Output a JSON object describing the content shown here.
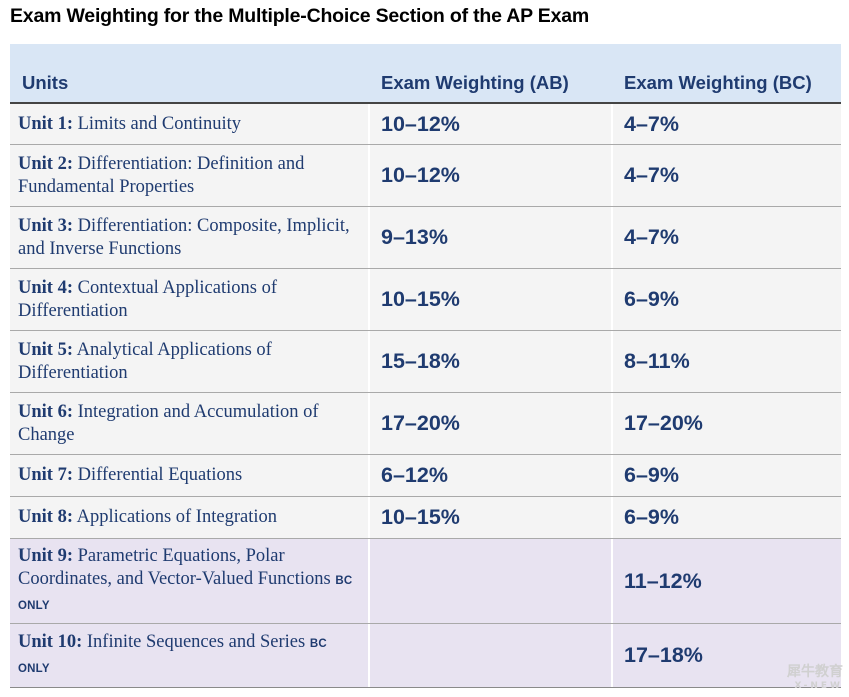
{
  "title": "Exam Weighting for the Multiple-Choice Section of the AP Exam",
  "table": {
    "headers": {
      "units": "Units",
      "ab": "Exam Weighting (AB)",
      "bc": "Exam Weighting (BC)"
    },
    "rows": [
      {
        "unit": "Unit 1:",
        "name": "Limits and Continuity",
        "ab": "10–12%",
        "bc": "4–7%",
        "bc_only": ""
      },
      {
        "unit": "Unit 2:",
        "name": "Differentiation: Definition and Fundamental Properties",
        "ab": "10–12%",
        "bc": "4–7%",
        "bc_only": ""
      },
      {
        "unit": "Unit 3:",
        "name": "Differentiation: Composite, Implicit, and Inverse Functions",
        "ab": "9–13%",
        "bc": "4–7%",
        "bc_only": ""
      },
      {
        "unit": "Unit 4:",
        "name": "Contextual Applications of Differentiation",
        "ab": "10–15%",
        "bc": "6–9%",
        "bc_only": ""
      },
      {
        "unit": "Unit 5:",
        "name": "Analytical Applications of Differentiation",
        "ab": "15–18%",
        "bc": "8–11%",
        "bc_only": ""
      },
      {
        "unit": "Unit 6:",
        "name": "Integration and Accumulation of Change",
        "ab": "17–20%",
        "bc": "17–20%",
        "bc_only": ""
      },
      {
        "unit": "Unit 7:",
        "name": "Differential Equations",
        "ab": "6–12%",
        "bc": "6–9%",
        "bc_only": ""
      },
      {
        "unit": "Unit 8:",
        "name": "Applications of Integration",
        "ab": "10–15%",
        "bc": "6–9%",
        "bc_only": ""
      },
      {
        "unit": "Unit 9:",
        "name": "Parametric Equations, Polar Coordinates, and Vector-Valued Functions",
        "ab": "",
        "bc": "11–12%",
        "bc_only": "BC ONLY"
      },
      {
        "unit": "Unit 10:",
        "name": "Infinite Sequences and Series",
        "ab": "",
        "bc": "17–18%",
        "bc_only": "BC ONLY"
      }
    ]
  },
  "watermark": {
    "text": "犀牛教育",
    "sub": "X-NEW"
  }
}
